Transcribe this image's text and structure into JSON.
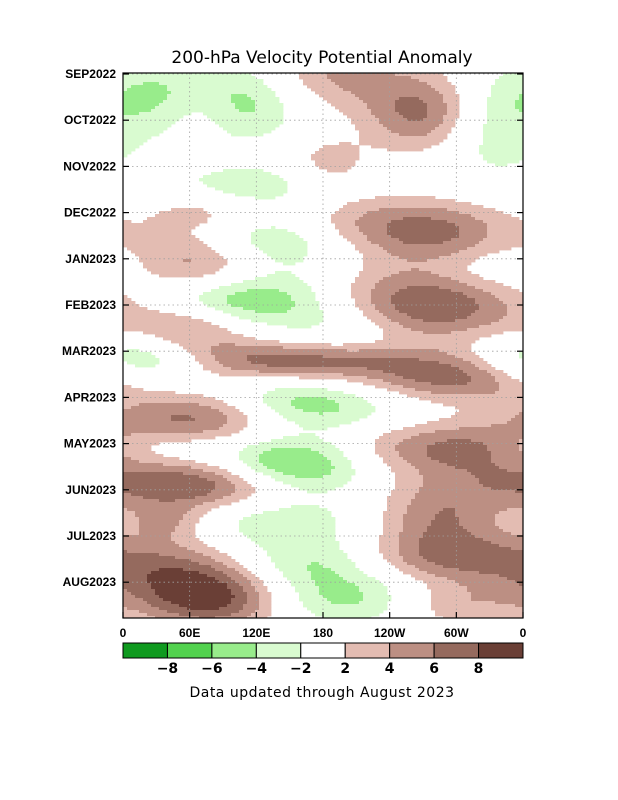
{
  "chart_data": {
    "type": "heatmap",
    "title": "200-hPa Velocity Potential Anomaly",
    "note": "Data updated through August 2023",
    "y_tick_labels": [
      "SEP2022",
      "OCT2022",
      "NOV2022",
      "DEC2022",
      "JAN2023",
      "FEB2023",
      "MAR2023",
      "APR2023",
      "MAY2023",
      "JUN2023",
      "JUL2023",
      "AUG2023"
    ],
    "x_tick_labels": [
      "0",
      "60E",
      "120E",
      "180",
      "120W",
      "60W",
      "0"
    ],
    "x_ticks_lon": [
      0,
      60,
      120,
      180,
      240,
      300,
      360
    ],
    "colorbar": {
      "tick_labels": [
        "-8",
        "-6",
        "-4",
        "-2",
        "2",
        "4",
        "6",
        "8"
      ],
      "bins": [
        {
          "range": "< -8",
          "color": "#0f9a1f"
        },
        {
          "range": "-8 to -6",
          "color": "#52d24e"
        },
        {
          "range": "-6 to -4",
          "color": "#98ec8b"
        },
        {
          "range": "-4 to -2",
          "color": "#d9fbd0"
        },
        {
          "range": "-2 to 2",
          "color": "#ffffff"
        },
        {
          "range": "2 to 4",
          "color": "#e3bcb2"
        },
        {
          "range": "4 to 6",
          "color": "#bc8f83"
        },
        {
          "range": "6 to 8",
          "color": "#956a5e"
        },
        {
          "range": "> 8",
          "color": "#6a3f36"
        }
      ]
    },
    "anomalies": [
      {
        "lon": 190,
        "t": 0.05,
        "v": 4.5,
        "lw": 45,
        "tw": 0.55
      },
      {
        "lon": 100,
        "t": 0.6,
        "v": -5.5,
        "lw": 45,
        "tw": 0.6
      },
      {
        "lon": 270,
        "t": 0.85,
        "v": 7,
        "lw": 35,
        "tw": 0.6
      },
      {
        "lon": 70,
        "t": 0.7,
        "v": 3.5,
        "lw": 25,
        "tw": 0.5
      },
      {
        "lon": 30,
        "t": 0.4,
        "v": -3,
        "lw": 40,
        "tw": 0.5
      },
      {
        "lon": 330,
        "t": 1.2,
        "v": -3.5,
        "lw": 40,
        "tw": 0.8
      },
      {
        "lon": 185,
        "t": 1.9,
        "v": 3,
        "lw": 25,
        "tw": 0.4
      },
      {
        "lon": 110,
        "t": 2.45,
        "v": -3.5,
        "lw": 50,
        "tw": 0.35
      },
      {
        "lon": 75,
        "t": 3.0,
        "v": 4,
        "lw": 40,
        "tw": 0.35
      },
      {
        "lon": 200,
        "t": 3.2,
        "v": 3,
        "lw": 50,
        "tw": 0.4
      },
      {
        "lon": 280,
        "t": 3.45,
        "v": 6.5,
        "lw": 50,
        "tw": 0.5
      },
      {
        "lon": 120,
        "t": 3.6,
        "v": -6,
        "lw": 55,
        "tw": 0.5
      },
      {
        "lon": 70,
        "t": 4.05,
        "v": 7.5,
        "lw": 45,
        "tw": 0.5
      },
      {
        "lon": 330,
        "t": 4.25,
        "v": -3,
        "lw": 50,
        "tw": 0.4
      },
      {
        "lon": 105,
        "t": 4.9,
        "v": -7,
        "lw": 60,
        "tw": 0.45
      },
      {
        "lon": 275,
        "t": 4.95,
        "v": 8.5,
        "lw": 65,
        "tw": 0.55
      },
      {
        "lon": 60,
        "t": 5.5,
        "v": 6,
        "lw": 40,
        "tw": 0.4
      },
      {
        "lon": 200,
        "t": 5.55,
        "v": -3,
        "lw": 40,
        "tw": 0.5
      },
      {
        "lon": 20,
        "t": 6.2,
        "v": -6.5,
        "lw": 40,
        "tw": 0.4
      },
      {
        "lon": 160,
        "t": 6.2,
        "v": 7.5,
        "lw": 80,
        "tw": 0.3
      },
      {
        "lon": 300,
        "t": 6.6,
        "v": 6.5,
        "lw": 60,
        "tw": 0.35
      },
      {
        "lon": 80,
        "t": 7.4,
        "v": 8.5,
        "lw": 60,
        "tw": 0.4
      },
      {
        "lon": 150,
        "t": 7.2,
        "v": -7.5,
        "lw": 60,
        "tw": 0.4
      },
      {
        "lon": 30,
        "t": 8.1,
        "v": -3,
        "lw": 40,
        "tw": 0.3
      },
      {
        "lon": 300,
        "t": 8.1,
        "v": 6.5,
        "lw": 70,
        "tw": 0.4
      },
      {
        "lon": 150,
        "t": 8.5,
        "v": -8.5,
        "lw": 50,
        "tw": 0.45
      },
      {
        "lon": 80,
        "t": 8.9,
        "v": 8.5,
        "lw": 60,
        "tw": 0.4
      },
      {
        "lon": 320,
        "t": 8.9,
        "v": 3,
        "lw": 60,
        "tw": 0.4
      },
      {
        "lon": 130,
        "t": 9.6,
        "v": -3.5,
        "lw": 60,
        "tw": 0.4
      },
      {
        "lon": 285,
        "t": 9.6,
        "v": 5,
        "lw": 40,
        "tw": 0.45
      },
      {
        "lon": 40,
        "t": 9.7,
        "v": 4,
        "lw": 25,
        "tw": 0.3
      },
      {
        "lon": 290,
        "t": 10.45,
        "v": 6.5,
        "lw": 60,
        "tw": 0.4
      },
      {
        "lon": 170,
        "t": 10.6,
        "v": -5,
        "lw": 55,
        "tw": 0.45
      },
      {
        "lon": 50,
        "t": 10.8,
        "v": 6,
        "lw": 55,
        "tw": 0.5
      },
      {
        "lon": 80,
        "t": 11.4,
        "v": 7.5,
        "lw": 45,
        "tw": 0.45
      },
      {
        "lon": 300,
        "t": 11.5,
        "v": 3.5,
        "lw": 40,
        "tw": 0.35
      },
      {
        "lon": 200,
        "t": 11.4,
        "v": -4,
        "lw": 50,
        "tw": 0.4
      }
    ]
  }
}
